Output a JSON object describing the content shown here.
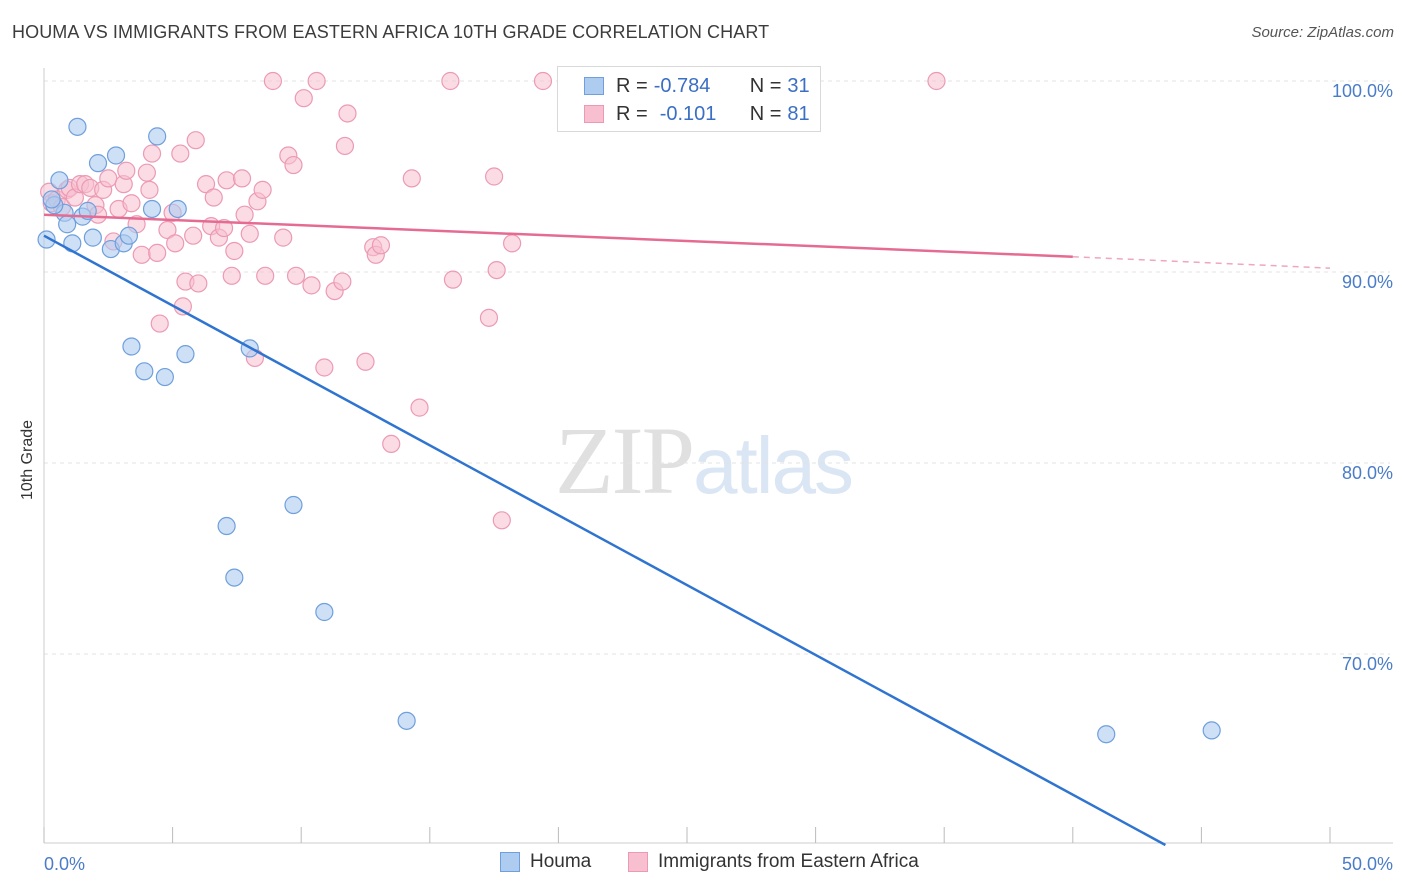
{
  "header": {
    "title": "HOUMA VS IMMIGRANTS FROM EASTERN AFRICA 10TH GRADE CORRELATION CHART",
    "source": "Source: ZipAtlas.com"
  },
  "watermark": {
    "zip": "ZIP",
    "atlas": "atlas"
  },
  "legend": {
    "houma": {
      "r_label": "R =",
      "r_value": "-0.784",
      "n_label": "N =",
      "n_value": "31"
    },
    "africa": {
      "r_label": "R =",
      "r_value": "-0.101",
      "n_label": "N =",
      "n_value": "81"
    }
  },
  "bottom_legend": {
    "houma": "Houma",
    "africa": "Immigrants from Eastern Africa"
  },
  "colors": {
    "houma_fill": "#aecbf0",
    "houma_stroke": "#6f9fdc",
    "houma_line": "#2f74d0",
    "africa_fill": "#f7bfd0",
    "africa_stroke": "#ec9ab4",
    "africa_line": "#e56b93",
    "tick": "#4a7cc7"
  },
  "chart_data": {
    "type": "scatter",
    "title": "HOUMA VS IMMIGRANTS FROM EASTERN AFRICA 10TH GRADE CORRELATION CHART",
    "xlabel": "",
    "ylabel": "10th Grade",
    "xlim": [
      0,
      50
    ],
    "ylim": [
      60,
      101.5
    ],
    "x_tick_labels": [
      "0.0%",
      "50.0%"
    ],
    "y_ticks": [
      {
        "value": 70,
        "label": "70.0%"
      },
      {
        "value": 80,
        "label": "80.0%"
      },
      {
        "value": 90,
        "label": "90.0%"
      },
      {
        "value": 100,
        "label": "100.0%"
      }
    ],
    "grid": true,
    "series": [
      {
        "name": "Houma",
        "points": [
          [
            0.1,
            91.7
          ],
          [
            0.6,
            94.8
          ],
          [
            0.8,
            93.1
          ],
          [
            0.9,
            92.5
          ],
          [
            1.1,
            91.5
          ],
          [
            1.3,
            97.6
          ],
          [
            1.5,
            92.9
          ],
          [
            1.9,
            91.8
          ],
          [
            2.1,
            95.7
          ],
          [
            2.6,
            91.2
          ],
          [
            2.8,
            96.1
          ],
          [
            3.1,
            91.5
          ],
          [
            3.3,
            91.9
          ],
          [
            3.4,
            86.1
          ],
          [
            3.9,
            84.8
          ],
          [
            4.2,
            93.3
          ],
          [
            4.4,
            97.1
          ],
          [
            4.7,
            84.5
          ],
          [
            5.2,
            93.3
          ],
          [
            5.5,
            85.7
          ],
          [
            7.1,
            76.7
          ],
          [
            7.4,
            74.0
          ],
          [
            8.0,
            86.0
          ],
          [
            9.7,
            77.8
          ],
          [
            10.9,
            72.2
          ],
          [
            14.1,
            66.5
          ],
          [
            41.3,
            65.8
          ],
          [
            45.4,
            66.0
          ],
          [
            0.4,
            93.5
          ],
          [
            1.7,
            93.2
          ],
          [
            0.3,
            93.8
          ]
        ],
        "trend": {
          "x": [
            0,
            43.6
          ],
          "y": [
            91.9,
            60
          ]
        }
      },
      {
        "name": "Immigrants from Eastern Africa",
        "points": [
          [
            0.2,
            94.2
          ],
          [
            0.3,
            93.6
          ],
          [
            0.5,
            93.8
          ],
          [
            0.7,
            93.4
          ],
          [
            0.9,
            94.3
          ],
          [
            1.0,
            94.4
          ],
          [
            1.2,
            93.9
          ],
          [
            1.4,
            94.6
          ],
          [
            1.6,
            94.6
          ],
          [
            1.8,
            94.4
          ],
          [
            2.0,
            93.5
          ],
          [
            2.1,
            93.0
          ],
          [
            2.3,
            94.3
          ],
          [
            2.5,
            94.9
          ],
          [
            2.7,
            91.6
          ],
          [
            2.9,
            93.3
          ],
          [
            3.1,
            94.6
          ],
          [
            3.2,
            95.3
          ],
          [
            3.4,
            93.6
          ],
          [
            3.6,
            92.5
          ],
          [
            3.8,
            90.9
          ],
          [
            4.0,
            95.2
          ],
          [
            4.1,
            94.3
          ],
          [
            4.2,
            96.2
          ],
          [
            4.4,
            91.0
          ],
          [
            4.5,
            87.3
          ],
          [
            4.8,
            92.2
          ],
          [
            5.0,
            93.1
          ],
          [
            5.1,
            91.5
          ],
          [
            5.3,
            96.2
          ],
          [
            5.4,
            88.2
          ],
          [
            5.5,
            89.5
          ],
          [
            5.8,
            91.9
          ],
          [
            5.9,
            96.9
          ],
          [
            6.0,
            89.4
          ],
          [
            6.3,
            94.6
          ],
          [
            6.5,
            92.4
          ],
          [
            6.6,
            93.9
          ],
          [
            6.8,
            91.8
          ],
          [
            7.0,
            92.3
          ],
          [
            7.1,
            94.8
          ],
          [
            7.3,
            89.8
          ],
          [
            7.4,
            91.1
          ],
          [
            7.7,
            94.9
          ],
          [
            7.8,
            93.0
          ],
          [
            8.0,
            92.0
          ],
          [
            8.2,
            85.5
          ],
          [
            8.3,
            93.7
          ],
          [
            8.5,
            94.3
          ],
          [
            8.6,
            89.8
          ],
          [
            8.9,
            100.0
          ],
          [
            9.3,
            91.8
          ],
          [
            9.5,
            96.1
          ],
          [
            9.7,
            95.6
          ],
          [
            9.8,
            89.8
          ],
          [
            10.1,
            99.1
          ],
          [
            10.4,
            89.3
          ],
          [
            10.6,
            100.0
          ],
          [
            10.9,
            85.0
          ],
          [
            11.3,
            89.0
          ],
          [
            11.6,
            89.5
          ],
          [
            11.7,
            96.6
          ],
          [
            11.8,
            98.3
          ],
          [
            12.5,
            85.3
          ],
          [
            12.8,
            91.3
          ],
          [
            12.9,
            90.9
          ],
          [
            13.1,
            91.4
          ],
          [
            13.5,
            81.0
          ],
          [
            14.3,
            94.9
          ],
          [
            14.6,
            82.9
          ],
          [
            15.8,
            100.0
          ],
          [
            15.9,
            89.6
          ],
          [
            17.3,
            87.6
          ],
          [
            17.5,
            95.0
          ],
          [
            17.6,
            90.1
          ],
          [
            17.8,
            77.0
          ],
          [
            18.2,
            91.5
          ],
          [
            19.4,
            100.0
          ],
          [
            21.0,
            100.0
          ],
          [
            23.3,
            100.0
          ],
          [
            34.7,
            100.0
          ]
        ],
        "trend": {
          "x": [
            0,
            40
          ],
          "y": [
            93.0,
            90.8
          ]
        },
        "trend_dashed": {
          "x": [
            40,
            50
          ],
          "y": [
            90.8,
            90.2
          ]
        }
      }
    ]
  }
}
